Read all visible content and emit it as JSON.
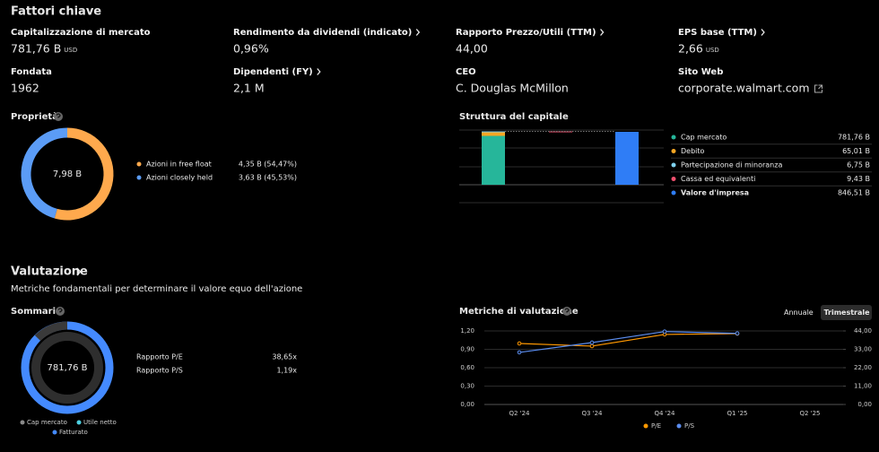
{
  "header": {
    "title": "Fattori chiave"
  },
  "stats": [
    {
      "label": "Capitalizzazione di mercato",
      "value": "781,76 B",
      "unit": "USD"
    },
    {
      "label": "Rendimento da dividendi (indicato)",
      "value": "0,96%",
      "icon": "arrow"
    },
    {
      "label": "Rapporto Prezzo/Utili (TTM)",
      "value": "44,00",
      "icon": "arrow"
    },
    {
      "label": "EPS base (TTM)",
      "value": "2,66",
      "unit": "USD",
      "icon": "arrow"
    },
    {
      "label": "Fondata",
      "value": "1962"
    },
    {
      "label": "Dipendenti (FY)",
      "value": "2,1 M",
      "icon": "arrow"
    },
    {
      "label": "CEO",
      "value": "C. Douglas McMillon"
    },
    {
      "label": "Sito Web",
      "value": "corporate.walmart.com",
      "icon": "external"
    }
  ],
  "ownership": {
    "title": "Proprietà",
    "center": "7,98 B",
    "items": [
      {
        "name": "Azioni in free float",
        "value_label": "4,35 B (54,47%)",
        "value": 54.47,
        "color": "#ffa94d"
      },
      {
        "name": "Azioni closely held",
        "value_label": "3,63 B (45,53%)",
        "value": 45.53,
        "color": "#5b9cf6"
      }
    ]
  },
  "capital_structure": {
    "title": "Struttura del capitale",
    "items": [
      {
        "name": "Cap mercato",
        "value": 781.76,
        "value_label": "781,76 B",
        "color": "#26b69a",
        "step": "increase"
      },
      {
        "name": "Debito",
        "value": 65.01,
        "value_label": "65,01 B",
        "color": "#f5a623",
        "step": "increase"
      },
      {
        "name": "Partecipazione di minoranza",
        "value": 6.75,
        "value_label": "6,75 B",
        "color": "#7fd3f0",
        "step": "increase"
      },
      {
        "name": "Cassa ed equivalenti",
        "value": 9.43,
        "value_label": "9,43 B",
        "color": "#f0506e",
        "step": "decrease"
      },
      {
        "name": "Valore d'impresa",
        "value": 846.51,
        "value_label": "846,51 B",
        "color": "#2f7df6",
        "step": "total"
      }
    ]
  },
  "valuation": {
    "title": "Valutazione",
    "subtitle": "Metriche fondamentali per determinare il valore equo dell'azione"
  },
  "summary": {
    "title": "Sommario",
    "center": "781,76 B",
    "legend": [
      {
        "name": "Cap mercato",
        "color": "#8a8a8a"
      },
      {
        "name": "Utile netto",
        "color": "#4dd0e1"
      },
      {
        "name": "Fatturato",
        "color": "#448aff"
      }
    ],
    "ratios": [
      {
        "label": "Rapporto P/E",
        "value": "38,65x"
      },
      {
        "label": "Rapporto P/S",
        "value": "1,19x"
      }
    ]
  },
  "chart_data": {
    "type": "line",
    "title": "Metriche di valutazione",
    "tabs": [
      "Annuale",
      "Trimestrale"
    ],
    "active_tab": 1,
    "categories": [
      "Q2 '24",
      "Q3 '24",
      "Q4 '24",
      "Q1 '25",
      "Q2 '25"
    ],
    "series": [
      {
        "name": "P/E",
        "color": "#ff9800",
        "axis": "y2",
        "values": [
          36.5,
          34.9,
          41.9,
          42.4,
          null
        ]
      },
      {
        "name": "P/S",
        "color": "#5b8def",
        "values": [
          0.85,
          1.01,
          1.19,
          1.16,
          null
        ]
      }
    ],
    "ylim": [
      0,
      1.2
    ],
    "yticks": [
      {
        "value": 0,
        "label": "0,00"
      },
      {
        "value": 0.3,
        "label": "0,30"
      },
      {
        "value": 0.6,
        "label": "0,60"
      },
      {
        "value": 0.9,
        "label": "0,90"
      },
      {
        "value": 1.2,
        "label": "1,20"
      }
    ],
    "y2lim": [
      0,
      44
    ],
    "y2ticks": [
      {
        "value": 0,
        "label": "0,00"
      },
      {
        "value": 11,
        "label": "11,00"
      },
      {
        "value": 22,
        "label": "22,00"
      },
      {
        "value": 33,
        "label": "33,00"
      },
      {
        "value": 44,
        "label": "44,00"
      }
    ],
    "grid": true
  }
}
